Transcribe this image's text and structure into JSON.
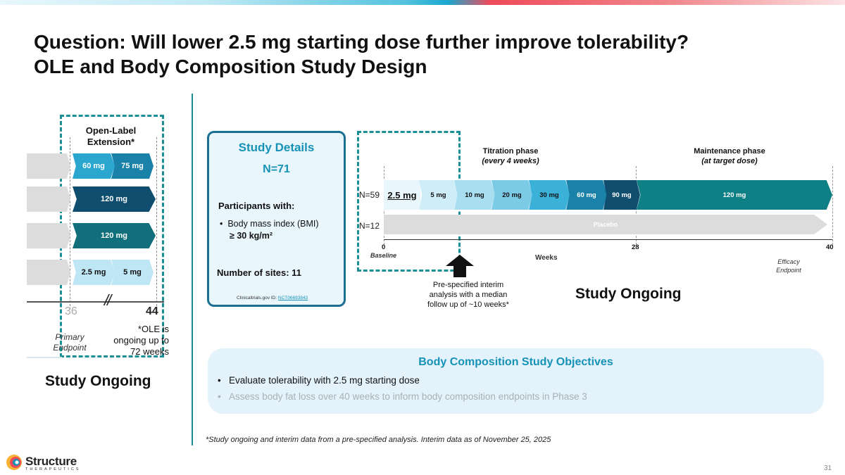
{
  "title_line1": "Question: Will lower 2.5 mg starting dose further improve tolerability?",
  "title_line2": "OLE and Body Composition Study Design",
  "ole": {
    "label_line1": "Open-Label",
    "label_line2": "Extension*",
    "rows": [
      {
        "seg1": "60 mg",
        "seg2": "75 mg"
      },
      {
        "seg1": "120 mg"
      },
      {
        "seg1": "120 mg"
      },
      {
        "seg1": "2.5 mg",
        "seg2": "5 mg"
      }
    ],
    "tick_start": "36",
    "tick_end": "44",
    "primary_endpoint_line1": "Primary",
    "primary_endpoint_line2": "Endpoint",
    "note_line1": "*OLE is",
    "note_line2": "ongoing up to",
    "note_line3": "72 weeks",
    "status": "Study Ongoing"
  },
  "details": {
    "title": "Study Details",
    "n": "N=71",
    "participants_label": "Participants with:",
    "criterion_line1": "Body mass index (BMI)",
    "criterion_line2": "≥ 30 kg/m²",
    "sites": "Number of sites: 11",
    "ct_prefix": "Clinicaltrials.gov ID: ",
    "ct_id": "NCT06693843"
  },
  "design": {
    "titration_line1": "Titration phase",
    "titration_line2": "(every 4 weeks)",
    "maintenance_line1": "Maintenance phase",
    "maintenance_line2": "(at target dose)",
    "active_n": "N=59",
    "placebo_n": "N=12",
    "start_dose": "2.5 mg",
    "doses": [
      "5 mg",
      "10 mg",
      "20 mg",
      "30 mg",
      "60 mg",
      "90 mg",
      "120 mg"
    ],
    "placebo_label": "Placebo",
    "week_0": "0",
    "week_28": "28",
    "week_40": "40",
    "baseline": "Baseline",
    "weeks_label": "Weeks",
    "efficacy_line1": "Efficacy",
    "efficacy_line2": "Endpoint",
    "interim_line1": "Pre-specified interim",
    "interim_line2": "analysis with a median",
    "interim_line3": "follow up of ~10 weeks*",
    "status": "Study Ongoing"
  },
  "objectives": {
    "title": "Body Composition Study Objectives",
    "item1": "Evaluate tolerability with 2.5 mg starting dose",
    "item2": "Assess body fat loss over 40 weeks to inform body composition endpoints in Phase 3"
  },
  "footnote": "*Study ongoing and interim data from a pre-specified analysis. Interim data as of November 25, 2025",
  "logo_name": "Structure",
  "logo_sub": "THERAPEUTICS",
  "page_number": "31",
  "colors": {
    "teal": "#1a8f96",
    "accent_blue": "#1592b6",
    "dark_navy": "#0f4e6e"
  }
}
